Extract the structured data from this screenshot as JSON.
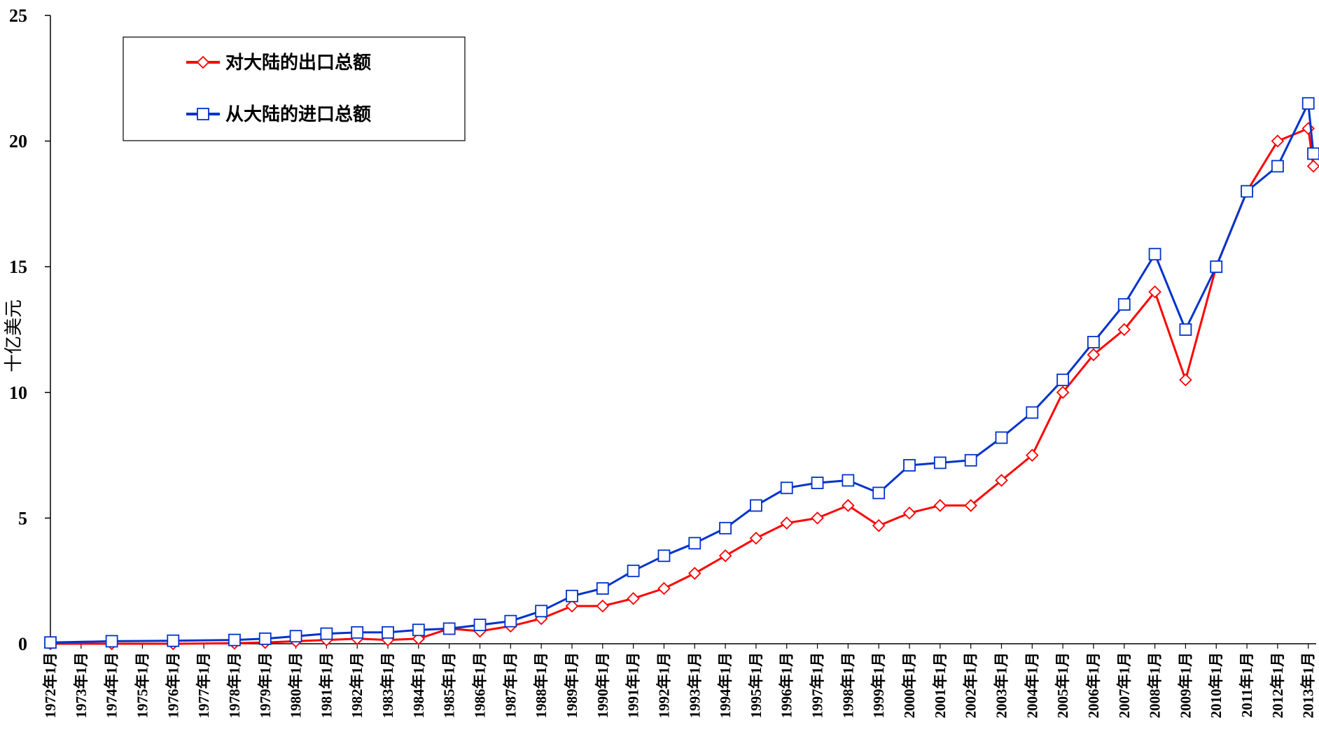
{
  "chart_data": {
    "type": "line",
    "title": "",
    "ylabel": "十亿美元",
    "xlabel": "",
    "ylim": [
      0,
      25
    ],
    "yticks": [
      0,
      5,
      10,
      15,
      20,
      25
    ],
    "xtick_labels": [
      "1972年1月",
      "1973年1月",
      "1974年1月",
      "1975年1月",
      "1976年1月",
      "1977年1月",
      "1978年1月",
      "1979年1月",
      "1980年1月",
      "1981年1月",
      "1982年1月",
      "1983年1月",
      "1984年1月",
      "1985年1月",
      "1986年1月",
      "1987年1月",
      "1988年1月",
      "1989年1月",
      "1990年1月",
      "1991年1月",
      "1992年1月",
      "1993年1月",
      "1994年1月",
      "1995年1月",
      "1996年1月",
      "1997年1月",
      "1998年1月",
      "1999年1月",
      "2000年1月",
      "2001年1月",
      "2002年1月",
      "2003年1月",
      "2004年1月",
      "2005年1月",
      "2006年1月",
      "2007年1月",
      "2008年1月",
      "2009年1月",
      "2010年1月",
      "2011年1月",
      "2012年1月",
      "2013年1月"
    ],
    "x_label_note": "",
    "grid": false,
    "legend_position": "top-left",
    "series": [
      {
        "name": "对大陆的出口总额",
        "color": "#ff0000",
        "marker": "diamond",
        "x": [
          "1972-01",
          "1974-01",
          "1976-01",
          "1978-01",
          "1979-01",
          "1980-01",
          "1981-01",
          "1982-01",
          "1983-01",
          "1984-01",
          "1985-01",
          "1986-01",
          "1987-01",
          "1988-01",
          "1989-01",
          "1990-01",
          "1991-01",
          "1992-01",
          "1993-01",
          "1994-01",
          "1995-01",
          "1996-01",
          "1997-01",
          "1998-01",
          "1999-01",
          "2000-01",
          "2001-01",
          "2002-01",
          "2003-01",
          "2004-01",
          "2005-01",
          "2006-01",
          "2007-01",
          "2008-01",
          "2009-01",
          "2010-01",
          "2011-01",
          "2012-01",
          "2013-01",
          "2013-03"
        ],
        "values": [
          0.0,
          0.0,
          0.0,
          0.02,
          0.05,
          0.1,
          0.15,
          0.2,
          0.15,
          0.2,
          0.6,
          0.5,
          0.7,
          1.0,
          1.5,
          1.5,
          1.8,
          2.2,
          2.8,
          3.5,
          4.2,
          4.8,
          5.0,
          5.5,
          4.7,
          5.2,
          5.5,
          5.5,
          6.5,
          7.5,
          10.0,
          11.5,
          12.5,
          14.0,
          10.5,
          15.0,
          18.0,
          20.0,
          20.5,
          19.0
        ]
      },
      {
        "name": "从大陆的进口总额",
        "color": "#0033cc",
        "marker": "square",
        "x": [
          "1972-01",
          "1974-01",
          "1976-01",
          "1978-01",
          "1979-01",
          "1980-01",
          "1981-01",
          "1982-01",
          "1983-01",
          "1984-01",
          "1985-01",
          "1986-01",
          "1987-01",
          "1988-01",
          "1989-01",
          "1990-01",
          "1991-01",
          "1992-01",
          "1993-01",
          "1994-01",
          "1995-01",
          "1996-01",
          "1997-01",
          "1998-01",
          "1999-01",
          "2000-01",
          "2001-01",
          "2002-01",
          "2003-01",
          "2004-01",
          "2005-01",
          "2006-01",
          "2007-01",
          "2008-01",
          "2009-01",
          "2010-01",
          "2011-01",
          "2012-01",
          "2013-01",
          "2013-03"
        ],
        "values": [
          0.05,
          0.1,
          0.12,
          0.15,
          0.2,
          0.3,
          0.4,
          0.45,
          0.45,
          0.55,
          0.6,
          0.75,
          0.9,
          1.3,
          1.9,
          2.2,
          2.9,
          3.5,
          4.0,
          4.6,
          5.5,
          6.2,
          6.4,
          6.5,
          6.0,
          7.1,
          7.2,
          7.3,
          8.2,
          9.2,
          10.5,
          12.0,
          13.5,
          15.5,
          12.5,
          15.0,
          18.0,
          19.0,
          21.5,
          19.5
        ]
      }
    ]
  }
}
